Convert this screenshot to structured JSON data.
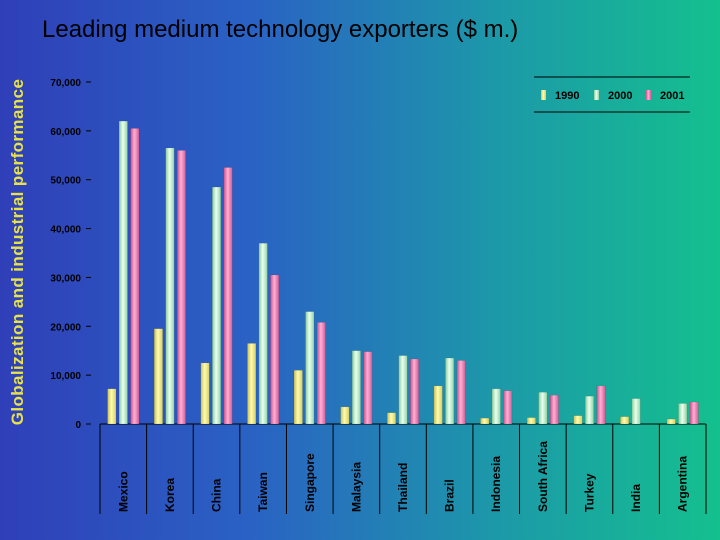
{
  "side_title": "Globalization and industrial performance",
  "slide_title": "Leading medium technology exporters ($ m.)",
  "chart_data": {
    "type": "bar",
    "title": "Leading medium technology exporters ($ m.)",
    "categories": [
      "Mexico",
      "Korea",
      "China",
      "Taiwan",
      "Singapore",
      "Malaysia",
      "Thailand",
      "Brazil",
      "Indonesia",
      "South Africa",
      "Turkey",
      "India",
      "Argentina"
    ],
    "series": [
      {
        "name": "1990",
        "color": "#f2ee7e",
        "values": [
          7200,
          19500,
          12500,
          16500,
          11000,
          3500,
          2300,
          7800,
          1200,
          1300,
          1700,
          1500,
          1000
        ]
      },
      {
        "name": "2000",
        "color": "#b8eec2",
        "values": [
          62000,
          56500,
          48500,
          37000,
          23000,
          15000,
          14000,
          13500,
          7200,
          6500,
          5700,
          5200,
          4200
        ]
      },
      {
        "name": "2001",
        "color": "#f07ab2",
        "values": [
          60500,
          56000,
          52500,
          30500,
          20800,
          14800,
          13300,
          13000,
          6800,
          5900,
          7800,
          0,
          4500
        ]
      }
    ],
    "ylim": [
      0,
      70000
    ],
    "yticks": [
      0,
      10000,
      20000,
      30000,
      40000,
      50000,
      60000,
      70000
    ],
    "ytick_labels": [
      "0",
      "10,000",
      "20,000",
      "30,000",
      "40,000",
      "50,000",
      "60,000",
      "70,000"
    ],
    "legend_position": "top-right",
    "grid": false
  }
}
